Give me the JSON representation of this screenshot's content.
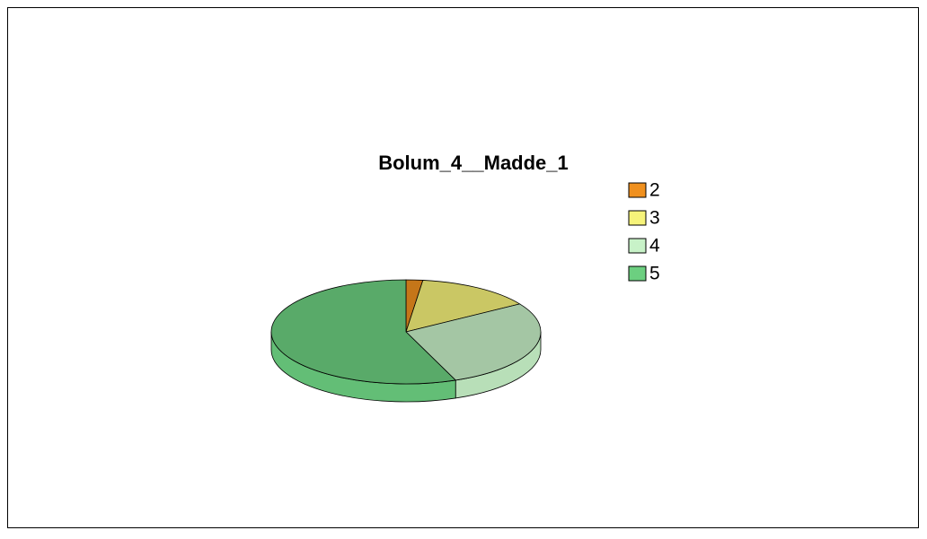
{
  "chart_data": {
    "type": "pie",
    "title": "Bolum_4__Madde_1",
    "categories": [
      "2",
      "3",
      "4",
      "5"
    ],
    "values": [
      2,
      14,
      28,
      56
    ],
    "colors": [
      "#f0901e",
      "#f6f37a",
      "#c8f2c8",
      "#6ccf80"
    ],
    "legend": "right"
  }
}
